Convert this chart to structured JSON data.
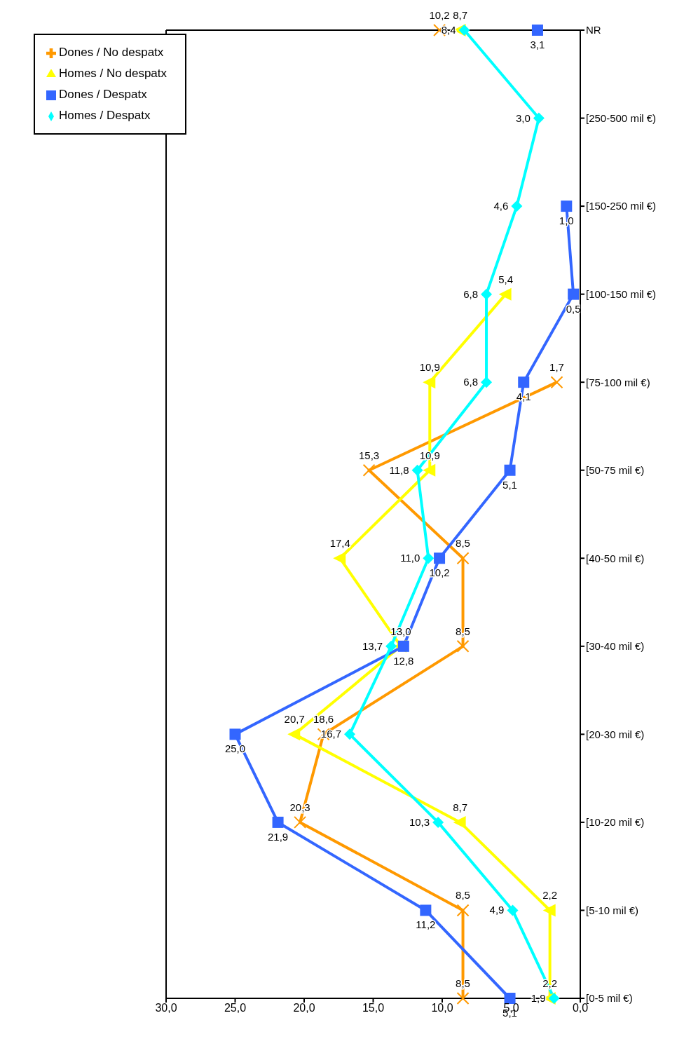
{
  "chart_data": {
    "type": "line",
    "orientation": "horizontal",
    "categories": [
      "NR",
      "[250-500 mil €)",
      "[150-250 mil €)",
      "[100-150 mil €)",
      "[75-100 mil €)",
      "[50-75 mil €)",
      "[40-50 mil €)",
      "[30-40 mil €)",
      "[20-30 mil €)",
      "[10-20 mil €)",
      "[5-10 mil €)",
      "[0-5 mil €)"
    ],
    "series": [
      {
        "name": "Homes / Despatx",
        "color": "#00ffff",
        "marker": "diamond",
        "values": [
          8.4,
          3.0,
          4.6,
          6.8,
          6.8,
          11.8,
          11.0,
          13.7,
          16.7,
          10.3,
          4.9,
          1.9
        ],
        "value_labels": [
          "8,4",
          "3,0",
          "4,6",
          "6,8",
          "6,8",
          "11,8",
          "11,0",
          "13,7",
          "16,7",
          "10,3",
          "4,9",
          "1,9"
        ]
      },
      {
        "name": "Dones / Despatx",
        "color": "#3366ff",
        "marker": "square",
        "values": [
          3.1,
          null,
          1.0,
          0.5,
          4.1,
          5.1,
          10.2,
          12.8,
          25.0,
          21.9,
          11.2,
          5.1
        ],
        "value_labels": [
          "3,1",
          null,
          "1,0",
          "0,5",
          "4,1",
          "5,1",
          "10,2",
          "12,8",
          "25,0",
          "21,9",
          "11,2",
          "5,1"
        ]
      },
      {
        "name": "Homes / No despatx",
        "color": "#ffff00",
        "marker": "triangle",
        "values": [
          8.7,
          null,
          null,
          5.4,
          10.9,
          10.9,
          17.4,
          13.0,
          20.7,
          8.7,
          2.2,
          2.2
        ],
        "value_labels": [
          "8,7",
          null,
          null,
          "5,4",
          "10,9",
          "10,9",
          "17,4",
          "13,0",
          "20,7",
          "8,7",
          "2,2",
          "2,2"
        ]
      },
      {
        "name": "Dones / No despatx",
        "color": "#ff9900",
        "marker": "cross",
        "values": [
          10.2,
          null,
          null,
          null,
          1.7,
          15.3,
          8.5,
          8.5,
          18.6,
          20.3,
          8.5,
          8.5
        ],
        "value_labels": [
          "10,2",
          null,
          null,
          null,
          "1,7",
          "15,3",
          "8,5",
          "8,5",
          "18,6",
          "20,3",
          "8,5",
          "8,5"
        ]
      }
    ],
    "xlim": [
      30,
      0
    ],
    "xticks": [
      {
        "value": 30,
        "label": "30,0"
      },
      {
        "value": 25,
        "label": "25,0"
      },
      {
        "value": 20,
        "label": "20,0"
      },
      {
        "value": 15,
        "label": "15,0"
      },
      {
        "value": 10,
        "label": "10,0"
      },
      {
        "value": 5,
        "label": "5,0"
      },
      {
        "value": 0,
        "label": "0,0"
      }
    ],
    "legend": "top left",
    "line_style": "solid"
  }
}
